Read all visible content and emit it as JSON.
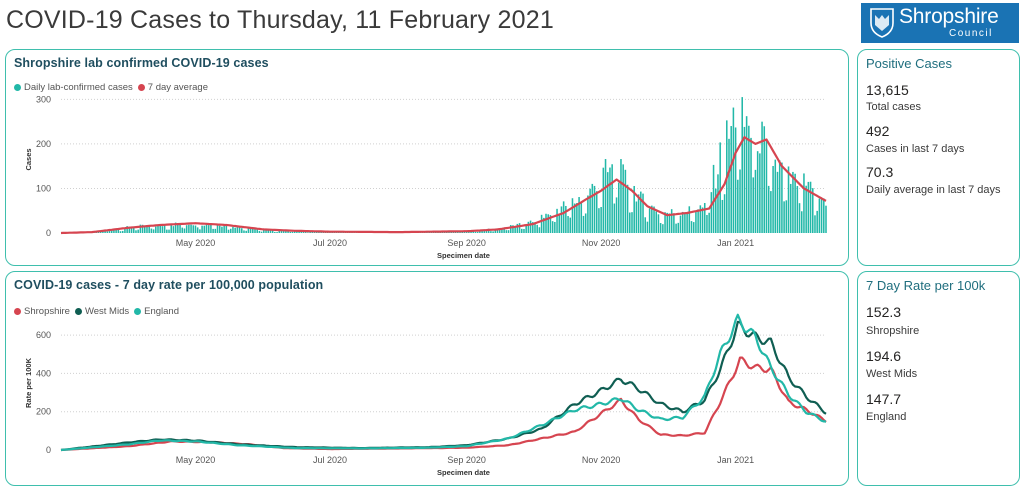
{
  "page": {
    "title": "COVID-19 Cases to Thursday, 11 February 2021"
  },
  "logo": {
    "name": "Shropshire",
    "sub": "Council",
    "icon": "shield-crest-icon",
    "bg_color": "#1a73b4"
  },
  "colors": {
    "border": "#3fbfad",
    "daily": "#22b8a8",
    "avg": "#d64550",
    "shropshire": "#d64550",
    "westmids": "#0f5e52",
    "england": "#22b8a8"
  },
  "kpi_cases": {
    "title": "Positive Cases",
    "items": [
      {
        "value": "13,615",
        "label": "Total cases"
      },
      {
        "value": "492",
        "label": "Cases in last 7 days"
      },
      {
        "value": "70.3",
        "label": "Daily average in last 7 days"
      }
    ]
  },
  "kpi_rate": {
    "title": "7 Day Rate per 100k",
    "items": [
      {
        "value": "152.3",
        "label": "Shropshire"
      },
      {
        "value": "194.6",
        "label": "West Mids"
      },
      {
        "value": "147.7",
        "label": "England"
      }
    ]
  },
  "chart_data": [
    {
      "type": "bar",
      "title": "Shropshire lab confirmed COVID-19 cases",
      "xlabel": "Specimen date",
      "ylabel": "Cases",
      "x_range": [
        "2020-03-01",
        "2021-02-11"
      ],
      "ylim": [
        0,
        330
      ],
      "yticks": [
        0,
        100,
        200,
        300
      ],
      "xticks": [
        {
          "date": "2020-05-01",
          "label": "May 2020"
        },
        {
          "date": "2020-07-01",
          "label": "Jul 2020"
        },
        {
          "date": "2020-09-01",
          "label": "Sep 2020"
        },
        {
          "date": "2020-11-01",
          "label": "Nov 2020"
        },
        {
          "date": "2021-01-01",
          "label": "Jan 2021"
        }
      ],
      "legend": "top-left",
      "grid": true,
      "series": [
        {
          "name": "Daily lab-confirmed cases",
          "style": "bar",
          "points": [
            [
              "2020-03-01",
              0
            ],
            [
              "2020-03-15",
              2
            ],
            [
              "2020-04-01",
              12
            ],
            [
              "2020-04-15",
              16
            ],
            [
              "2020-05-01",
              20
            ],
            [
              "2020-05-15",
              17
            ],
            [
              "2020-06-01",
              6
            ],
            [
              "2020-06-15",
              4
            ],
            [
              "2020-07-01",
              2
            ],
            [
              "2020-08-01",
              3
            ],
            [
              "2020-09-01",
              4
            ],
            [
              "2020-09-15",
              8
            ],
            [
              "2020-10-01",
              22
            ],
            [
              "2020-10-15",
              55
            ],
            [
              "2020-10-25",
              75
            ],
            [
              "2020-11-01",
              115
            ],
            [
              "2020-11-08",
              135
            ],
            [
              "2020-11-18",
              75
            ],
            [
              "2020-11-28",
              40
            ],
            [
              "2020-12-08",
              45
            ],
            [
              "2020-12-18",
              52
            ],
            [
              "2020-12-25",
              150
            ],
            [
              "2021-01-01",
              240
            ],
            [
              "2021-01-05",
              225
            ],
            [
              "2021-01-10",
              210
            ],
            [
              "2021-01-17",
              150
            ],
            [
              "2021-01-25",
              110
            ],
            [
              "2021-02-01",
              95
            ],
            [
              "2021-02-11",
              65
            ]
          ]
        },
        {
          "name": "7 day average",
          "style": "line",
          "points": [
            [
              "2020-03-01",
              0
            ],
            [
              "2020-03-15",
              2
            ],
            [
              "2020-04-01",
              12
            ],
            [
              "2020-04-15",
              18
            ],
            [
              "2020-05-01",
              22
            ],
            [
              "2020-05-15",
              18
            ],
            [
              "2020-06-01",
              8
            ],
            [
              "2020-06-15",
              5
            ],
            [
              "2020-07-01",
              3
            ],
            [
              "2020-08-01",
              2
            ],
            [
              "2020-09-01",
              4
            ],
            [
              "2020-09-15",
              8
            ],
            [
              "2020-10-01",
              20
            ],
            [
              "2020-10-15",
              45
            ],
            [
              "2020-10-25",
              75
            ],
            [
              "2020-11-01",
              95
            ],
            [
              "2020-11-08",
              120
            ],
            [
              "2020-11-15",
              95
            ],
            [
              "2020-11-22",
              60
            ],
            [
              "2020-12-01",
              40
            ],
            [
              "2020-12-10",
              45
            ],
            [
              "2020-12-20",
              55
            ],
            [
              "2020-12-27",
              110
            ],
            [
              "2021-01-01",
              180
            ],
            [
              "2021-01-05",
              215
            ],
            [
              "2021-01-10",
              200
            ],
            [
              "2021-01-15",
              210
            ],
            [
              "2021-01-22",
              150
            ],
            [
              "2021-02-01",
              100
            ],
            [
              "2021-02-11",
              72
            ]
          ]
        }
      ]
    },
    {
      "type": "line",
      "title": "COVID-19 cases - 7 day rate per 100,000 population",
      "xlabel": "Specimen date",
      "ylabel": "Rate per 100K",
      "x_range": [
        "2020-03-01",
        "2021-02-11"
      ],
      "ylim": [
        0,
        700
      ],
      "yticks": [
        0,
        200,
        400,
        600
      ],
      "xticks": [
        {
          "date": "2020-05-01",
          "label": "May 2020"
        },
        {
          "date": "2020-07-01",
          "label": "Jul 2020"
        },
        {
          "date": "2020-09-01",
          "label": "Sep 2020"
        },
        {
          "date": "2020-11-01",
          "label": "Nov 2020"
        },
        {
          "date": "2021-01-01",
          "label": "Jan 2021"
        }
      ],
      "legend": "top-left",
      "grid": true,
      "series": [
        {
          "name": "Shropshire",
          "points": [
            [
              "2020-03-01",
              0
            ],
            [
              "2020-04-01",
              20
            ],
            [
              "2020-04-20",
              45
            ],
            [
              "2020-05-10",
              40
            ],
            [
              "2020-05-25",
              30
            ],
            [
              "2020-06-10",
              10
            ],
            [
              "2020-07-01",
              5
            ],
            [
              "2020-08-01",
              8
            ],
            [
              "2020-09-01",
              12
            ],
            [
              "2020-09-20",
              25
            ],
            [
              "2020-10-05",
              60
            ],
            [
              "2020-10-20",
              95
            ],
            [
              "2020-11-01",
              190
            ],
            [
              "2020-11-10",
              260
            ],
            [
              "2020-11-18",
              160
            ],
            [
              "2020-11-28",
              80
            ],
            [
              "2020-12-08",
              75
            ],
            [
              "2020-12-18",
              90
            ],
            [
              "2020-12-25",
              250
            ],
            [
              "2021-01-03",
              470
            ],
            [
              "2021-01-10",
              430
            ],
            [
              "2021-01-17",
              420
            ],
            [
              "2021-01-25",
              250
            ],
            [
              "2021-02-02",
              210
            ],
            [
              "2021-02-11",
              152
            ]
          ]
        },
        {
          "name": "West Mids",
          "points": [
            [
              "2020-03-01",
              0
            ],
            [
              "2020-04-01",
              40
            ],
            [
              "2020-04-15",
              55
            ],
            [
              "2020-05-01",
              50
            ],
            [
              "2020-05-20",
              30
            ],
            [
              "2020-06-15",
              15
            ],
            [
              "2020-07-15",
              10
            ],
            [
              "2020-08-15",
              15
            ],
            [
              "2020-09-01",
              25
            ],
            [
              "2020-09-20",
              60
            ],
            [
              "2020-10-05",
              110
            ],
            [
              "2020-10-20",
              240
            ],
            [
              "2020-11-01",
              310
            ],
            [
              "2020-11-10",
              370
            ],
            [
              "2020-11-18",
              320
            ],
            [
              "2020-11-28",
              240
            ],
            [
              "2020-12-08",
              200
            ],
            [
              "2020-12-18",
              260
            ],
            [
              "2020-12-25",
              420
            ],
            [
              "2021-01-02",
              650
            ],
            [
              "2021-01-10",
              590
            ],
            [
              "2021-01-17",
              560
            ],
            [
              "2021-01-25",
              380
            ],
            [
              "2021-02-02",
              280
            ],
            [
              "2021-02-11",
              195
            ]
          ]
        },
        {
          "name": "England",
          "points": [
            [
              "2020-03-01",
              0
            ],
            [
              "2020-04-01",
              30
            ],
            [
              "2020-04-15",
              50
            ],
            [
              "2020-05-01",
              45
            ],
            [
              "2020-05-20",
              25
            ],
            [
              "2020-06-15",
              10
            ],
            [
              "2020-07-15",
              8
            ],
            [
              "2020-08-15",
              12
            ],
            [
              "2020-09-01",
              20
            ],
            [
              "2020-09-20",
              60
            ],
            [
              "2020-10-05",
              130
            ],
            [
              "2020-10-20",
              210
            ],
            [
              "2020-11-01",
              240
            ],
            [
              "2020-11-10",
              270
            ],
            [
              "2020-11-18",
              210
            ],
            [
              "2020-11-28",
              160
            ],
            [
              "2020-12-08",
              170
            ],
            [
              "2020-12-18",
              280
            ],
            [
              "2020-12-25",
              500
            ],
            [
              "2021-01-02",
              680
            ],
            [
              "2021-01-10",
              590
            ],
            [
              "2021-01-17",
              430
            ],
            [
              "2021-01-25",
              290
            ],
            [
              "2021-02-02",
              200
            ],
            [
              "2021-02-11",
              148
            ]
          ]
        }
      ]
    }
  ]
}
